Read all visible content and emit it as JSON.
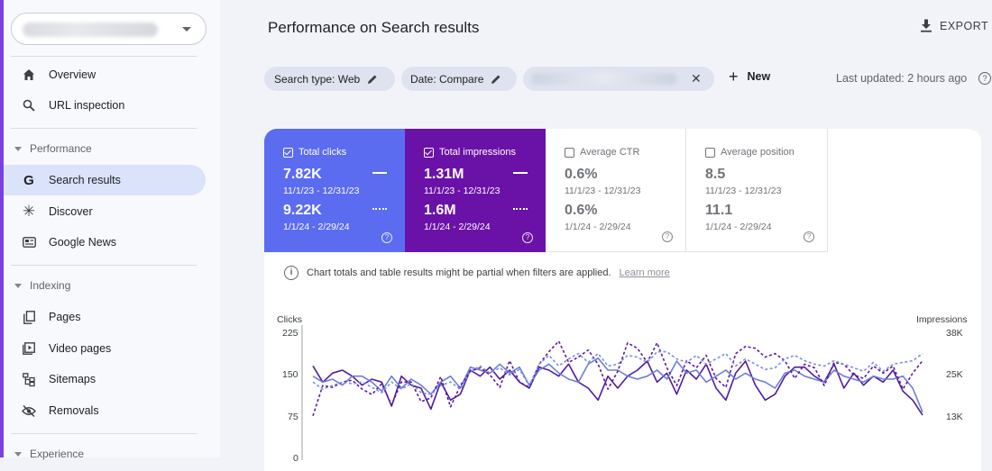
{
  "sidebar": {
    "nav_top": [
      {
        "label": "Overview",
        "icon": "home-icon"
      },
      {
        "label": "URL inspection",
        "icon": "search-icon"
      }
    ],
    "sections": {
      "performance": "Performance",
      "indexing": "Indexing",
      "experience": "Experience"
    },
    "performance_items": [
      {
        "label": "Search results",
        "icon": "google-g-icon",
        "active": true
      },
      {
        "label": "Discover",
        "icon": "discover-asterisk-icon"
      },
      {
        "label": "Google News",
        "icon": "news-icon"
      }
    ],
    "indexing_items": [
      {
        "label": "Pages",
        "icon": "pages-icon"
      },
      {
        "label": "Video pages",
        "icon": "video-pages-icon"
      },
      {
        "label": "Sitemaps",
        "icon": "sitemap-icon"
      },
      {
        "label": "Removals",
        "icon": "removals-eye-off-icon"
      }
    ]
  },
  "header": {
    "title": "Performance on Search results",
    "export_label": "EXPORT"
  },
  "filters": {
    "search_type": "Search type: Web",
    "date": "Date: Compare",
    "new_label": "New",
    "last_updated": "Last updated: 2 hours ago"
  },
  "metrics": {
    "clicks": {
      "label": "Total clicks",
      "v1": "7.82K",
      "d1": "11/1/23 - 12/31/23",
      "v2": "9.22K",
      "d2": "1/1/24 - 2/29/24",
      "checked": true
    },
    "impressions": {
      "label": "Total impressions",
      "v1": "1.31M",
      "d1": "11/1/23 - 12/31/23",
      "v2": "1.6M",
      "d2": "1/1/24 - 2/29/24",
      "checked": true
    },
    "ctr": {
      "label": "Average CTR",
      "v1": "0.6%",
      "d1": "11/1/23 - 12/31/23",
      "v2": "0.6%",
      "d2": "1/1/24 - 2/29/24",
      "checked": false
    },
    "position": {
      "label": "Average position",
      "v1": "8.5",
      "d1": "11/1/23 - 12/31/23",
      "v2": "11.1",
      "d2": "1/1/24 - 2/29/24",
      "checked": false
    }
  },
  "info": {
    "text": "Chart totals and table results might be partial when filters are applied.",
    "link": "Learn more"
  },
  "colors": {
    "clicks": "#5b6cf0",
    "impressions": "#6a12a8",
    "accent": "#7b3fe4"
  },
  "chart_data": {
    "type": "line",
    "left_axis_label": "Clicks",
    "right_axis_label": "Impressions",
    "left_ticks": [
      "225",
      "150",
      "75",
      "0"
    ],
    "right_ticks": [
      "38K",
      "25K",
      "13K"
    ],
    "ylim_left": [
      0,
      225
    ],
    "ylim_right": [
      0,
      38000
    ],
    "series": [
      {
        "metric": "clicks",
        "period": "1/1/24 - 2/29/24",
        "axis": "left",
        "style": "solid",
        "values": [
          157,
          130,
          145,
          150,
          140,
          125,
          135,
          130,
          90,
          140,
          125,
          120,
          85,
          130,
          100,
          110,
          150,
          140,
          155,
          135,
          150,
          130,
          120,
          155,
          150,
          140,
          160,
          130,
          120,
          100,
          140,
          120,
          140,
          150,
          165,
          130,
          145,
          110,
          150,
          135,
          160,
          120,
          100,
          145,
          165,
          125,
          100,
          110,
          140,
          155,
          155,
          140,
          130,
          160,
          120,
          145,
          125,
          140,
          130,
          150,
          115,
          100,
          75
        ]
      },
      {
        "metric": "clicks",
        "period": "11/1/23 - 12/31/23",
        "axis": "left",
        "style": "solid",
        "values": [
          140,
          130,
          135,
          125,
          140,
          140,
          130,
          115,
          140,
          120,
          135,
          125,
          110,
          130,
          140,
          120,
          155,
          150,
          145,
          160,
          145,
          155,
          125,
          150,
          160,
          145,
          135,
          130,
          160,
          170,
          150,
          150,
          140,
          135,
          140,
          150,
          135,
          165,
          145,
          150,
          130,
          140,
          150,
          135,
          145,
          135,
          130,
          120,
          145,
          150,
          140,
          135,
          130,
          150,
          140,
          135,
          130,
          140,
          135,
          135,
          140,
          120,
          80
        ]
      },
      {
        "metric": "impressions",
        "period": "1/1/24 - 2/29/24",
        "axis": "right",
        "style": "dash",
        "values": [
          12500,
          21000,
          20500,
          22000,
          22500,
          20000,
          18500,
          21500,
          15500,
          22000,
          22000,
          16500,
          17500,
          23500,
          15000,
          21000,
          25000,
          26000,
          24000,
          20500,
          28000,
          22000,
          20500,
          27000,
          30500,
          33500,
          27500,
          29000,
          31000,
          27000,
          20000,
          25000,
          33000,
          31500,
          27500,
          33000,
          26000,
          21000,
          28000,
          26000,
          29500,
          23000,
          20500,
          30000,
          32000,
          31500,
          29000,
          30000,
          28000,
          23000,
          27000,
          26000,
          21000,
          27500,
          27000,
          24000,
          23000,
          26500,
          24500,
          26500,
          20000,
          24500,
          28000
        ]
      },
      {
        "metric": "impressions",
        "period": "11/1/23 - 12/31/23",
        "axis": "right",
        "style": "dash",
        "values": [
          22000,
          20000,
          21000,
          22000,
          21500,
          22000,
          20500,
          19000,
          22000,
          20000,
          21500,
          19000,
          18500,
          21000,
          22000,
          20000,
          25000,
          26500,
          24500,
          26000,
          24000,
          25500,
          21000,
          27000,
          29500,
          26500,
          28500,
          30000,
          27500,
          30000,
          26500,
          27000,
          29500,
          29000,
          27500,
          30500,
          30500,
          28500,
          27500,
          29500,
          27000,
          28500,
          30000,
          26500,
          28500,
          27000,
          25500,
          26000,
          28500,
          29500,
          28000,
          27000,
          26500,
          28000,
          27000,
          26000,
          25000,
          27500,
          25000,
          27000,
          27500,
          28000,
          30000
        ]
      }
    ]
  }
}
